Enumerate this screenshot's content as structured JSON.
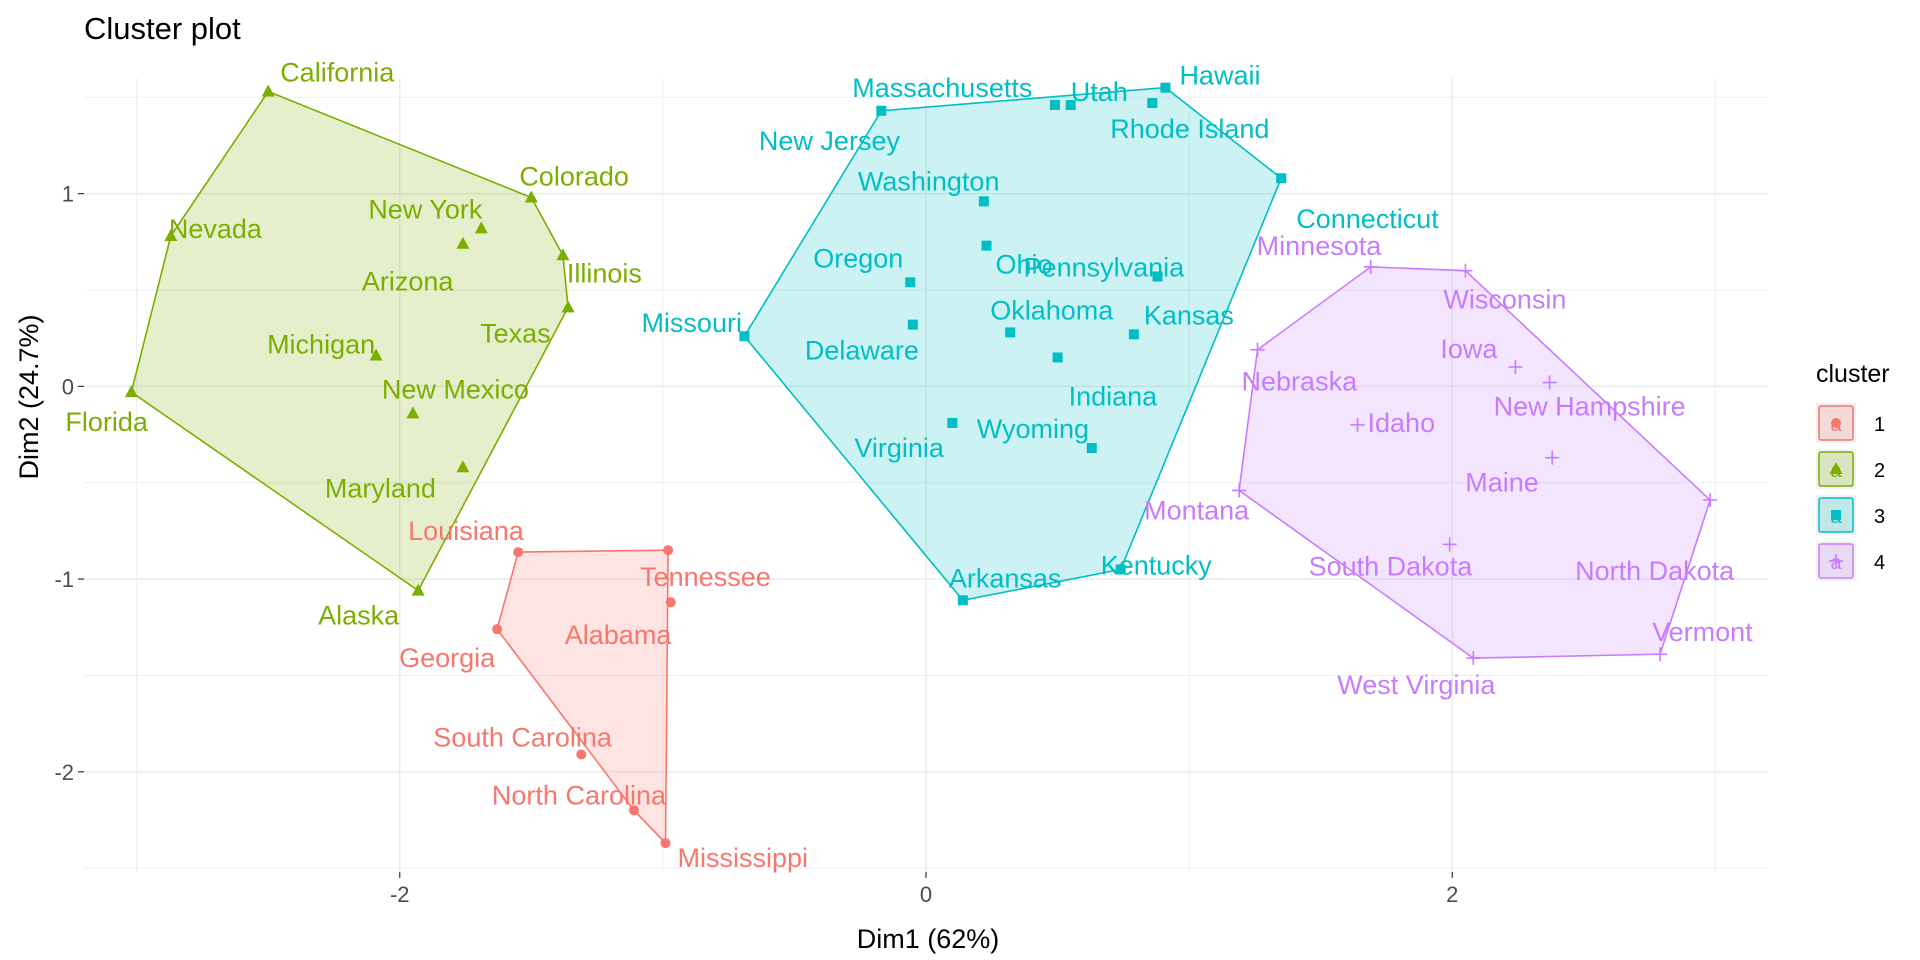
{
  "chart_data": {
    "type": "scatter",
    "title": "Cluster plot",
    "xlabel": "Dim1 (62%)",
    "ylabel": "Dim2 (24.7%)",
    "xlim": [
      -3.2,
      3.2
    ],
    "ylim": [
      -2.52,
      1.6
    ],
    "xticks": [
      -2,
      0,
      2
    ],
    "xtick_labels": [
      "-2",
      "0",
      "2"
    ],
    "yticks": [
      -2,
      -1,
      0,
      1
    ],
    "ytick_labels": [
      "-2",
      "-1",
      "0",
      "1"
    ],
    "grid": true,
    "legend": {
      "title": "cluster",
      "position": "right",
      "glyph": "a",
      "entries": [
        {
          "label": "1",
          "color": "#F8766D",
          "shape": "circle"
        },
        {
          "label": "2",
          "color": "#7CAE00",
          "shape": "triangle"
        },
        {
          "label": "3",
          "color": "#00BFC4",
          "shape": "square"
        },
        {
          "label": "4",
          "color": "#C77CFF",
          "shape": "plus"
        }
      ]
    },
    "clusters": [
      {
        "name": "1",
        "color": "#F8766D",
        "fill": "#F8766D",
        "shape": "circle",
        "hull": [
          "Louisiana",
          "Tennessee",
          "Mississippi",
          "North Carolina",
          "Georgia"
        ],
        "points": [
          {
            "label": "Louisiana",
            "x": -1.55,
            "y": -0.86
          },
          {
            "label": "Tennessee",
            "x": -0.98,
            "y": -0.85
          },
          {
            "label": "Alabama",
            "x": -0.97,
            "y": -1.12
          },
          {
            "label": "Georgia",
            "x": -1.63,
            "y": -1.26
          },
          {
            "label": "South Carolina",
            "x": -1.31,
            "y": -1.91
          },
          {
            "label": "North Carolina",
            "x": -1.11,
            "y": -2.2
          },
          {
            "label": "Mississippi",
            "x": -0.99,
            "y": -2.37
          }
        ]
      },
      {
        "name": "2",
        "color": "#7CAE00",
        "fill": "#7CAE00",
        "shape": "triangle",
        "hull": [
          "California",
          "Colorado",
          "Illinois",
          "Texas",
          "Alaska",
          "Florida",
          "Nevada"
        ],
        "points": [
          {
            "label": "California",
            "x": -2.5,
            "y": 1.53
          },
          {
            "label": "Colorado",
            "x": -1.5,
            "y": 0.98
          },
          {
            "label": "Nevada",
            "x": -2.87,
            "y": 0.78
          },
          {
            "label": "New York",
            "x": -1.69,
            "y": 0.82
          },
          {
            "label": "Arizona",
            "x": -1.76,
            "y": 0.74
          },
          {
            "label": "Illinois",
            "x": -1.38,
            "y": 0.68
          },
          {
            "label": "Texas",
            "x": -1.36,
            "y": 0.41
          },
          {
            "label": "Michigan",
            "x": -2.09,
            "y": 0.16
          },
          {
            "label": "Florida",
            "x": -3.02,
            "y": -0.03
          },
          {
            "label": "New Mexico",
            "x": -1.95,
            "y": -0.14
          },
          {
            "label": "Maryland",
            "x": -1.76,
            "y": -0.42
          },
          {
            "label": "Alaska",
            "x": -1.93,
            "y": -1.06
          }
        ]
      },
      {
        "name": "3",
        "color": "#00BFC4",
        "fill": "#00BFC4",
        "shape": "square",
        "hull": [
          "Massachusetts",
          "Hawaii",
          "Connecticut",
          "Kentucky",
          "Arkansas",
          "Missouri"
        ],
        "points": [
          {
            "label": "Massachusetts",
            "x": -0.17,
            "y": 1.43
          },
          {
            "label": "Utah",
            "x": 0.55,
            "y": 1.46
          },
          {
            "label": "Hawaii",
            "x": 0.91,
            "y": 1.55
          },
          {
            "label": "New Jersey",
            "x": 0.49,
            "y": 1.46
          },
          {
            "label": "Rhode Island",
            "x": 0.86,
            "y": 1.47
          },
          {
            "label": "Connecticut",
            "x": 1.35,
            "y": 1.08
          },
          {
            "label": "Washington",
            "x": 0.22,
            "y": 0.96
          },
          {
            "label": "Ohio",
            "x": 0.23,
            "y": 0.73
          },
          {
            "label": "Oregon",
            "x": -0.06,
            "y": 0.54
          },
          {
            "label": "Pennsylvania",
            "x": 0.88,
            "y": 0.57
          },
          {
            "label": "Missouri",
            "x": -0.69,
            "y": 0.26
          },
          {
            "label": "Delaware",
            "x": -0.05,
            "y": 0.32
          },
          {
            "label": "Oklahoma",
            "x": 0.32,
            "y": 0.28
          },
          {
            "label": "Kansas",
            "x": 0.79,
            "y": 0.27
          },
          {
            "label": "Indiana",
            "x": 0.5,
            "y": 0.15
          },
          {
            "label": "Virginia",
            "x": 0.1,
            "y": -0.19
          },
          {
            "label": "Wyoming",
            "x": 0.63,
            "y": -0.32
          },
          {
            "label": "Kentucky",
            "x": 0.74,
            "y": -0.95
          },
          {
            "label": "Arkansas",
            "x": 0.14,
            "y": -1.11
          }
        ]
      },
      {
        "name": "4",
        "color": "#C77CFF",
        "fill": "#C77CFF",
        "shape": "plus",
        "hull": [
          "Minnesota",
          "Wisconsin",
          "North Dakota",
          "Vermont",
          "West Virginia",
          "Montana",
          "Nebraska"
        ],
        "points": [
          {
            "label": "Minnesota",
            "x": 1.69,
            "y": 0.62
          },
          {
            "label": "Wisconsin",
            "x": 2.05,
            "y": 0.6
          },
          {
            "label": "Iowa",
            "x": 2.24,
            "y": 0.1
          },
          {
            "label": "New Hampshire",
            "x": 2.37,
            "y": 0.02
          },
          {
            "label": "Nebraska",
            "x": 1.26,
            "y": 0.19
          },
          {
            "label": "Idaho",
            "x": 1.64,
            "y": -0.2
          },
          {
            "label": "Maine",
            "x": 2.38,
            "y": -0.37
          },
          {
            "label": "Montana",
            "x": 1.19,
            "y": -0.54
          },
          {
            "label": "North Dakota",
            "x": 2.98,
            "y": -0.59
          },
          {
            "label": "South Dakota",
            "x": 1.99,
            "y": -0.82
          },
          {
            "label": "Vermont",
            "x": 2.79,
            "y": -1.39
          },
          {
            "label": "West Virginia",
            "x": 2.08,
            "y": -1.41
          }
        ]
      }
    ]
  }
}
